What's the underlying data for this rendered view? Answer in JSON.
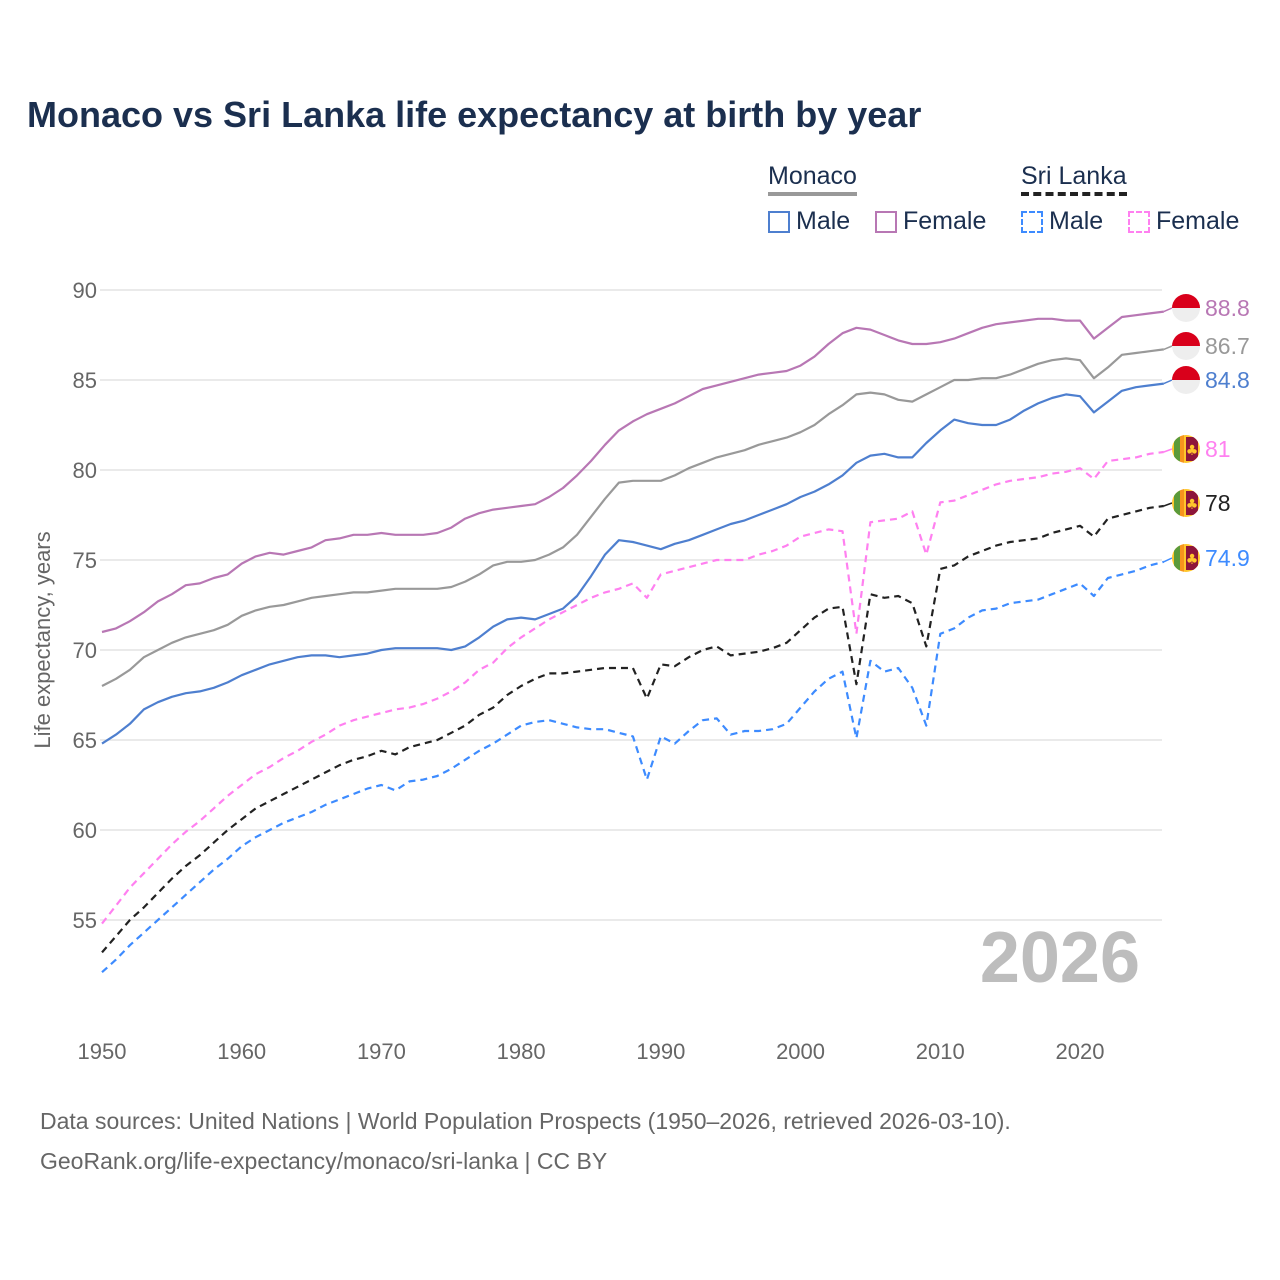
{
  "title": "Monaco vs Sri Lanka life expectancy at birth by year",
  "legend": {
    "groups": [
      {
        "name": "Monaco",
        "items": [
          "Male",
          "Female"
        ]
      },
      {
        "name": "Sri Lanka",
        "items": [
          "Male",
          "Female"
        ]
      }
    ]
  },
  "footer": {
    "line1": "Data sources: United Nations | World Population Prospects (1950–2026, retrieved 2026-03-10).",
    "line2": "GeoRank.org/life-expectancy/monaco/sri-lanka | CC BY"
  },
  "chart_data": {
    "type": "line",
    "title": "Monaco vs Sri Lanka life expectancy at birth by year",
    "xlabel": "",
    "ylabel": "Life expectancy, years",
    "xlim": [
      1950,
      2026
    ],
    "ylim": [
      50.5,
      91
    ],
    "xticks": [
      "1950",
      "1960",
      "1970",
      "1980",
      "1990",
      "2000",
      "2010",
      "2020"
    ],
    "yticks": [
      "55",
      "60",
      "65",
      "70",
      "75",
      "80",
      "85",
      "90"
    ],
    "current_year_label": "2026",
    "grid": true,
    "x_start": 1950,
    "series": [
      {
        "name": "Monaco Female",
        "color": "#b877b4",
        "dashed": false,
        "flag": "monaco",
        "end_label": "88.8",
        "values": [
          71.0,
          71.2,
          71.6,
          72.1,
          72.7,
          73.1,
          73.6,
          73.7,
          74.0,
          74.2,
          74.8,
          75.2,
          75.4,
          75.3,
          75.5,
          75.7,
          76.1,
          76.2,
          76.4,
          76.4,
          76.5,
          76.4,
          76.4,
          76.4,
          76.5,
          76.8,
          77.3,
          77.6,
          77.8,
          77.9,
          78.0,
          78.1,
          78.5,
          79.0,
          79.7,
          80.5,
          81.4,
          82.2,
          82.7,
          83.1,
          83.4,
          83.7,
          84.1,
          84.5,
          84.7,
          84.9,
          85.1,
          85.3,
          85.4,
          85.5,
          85.8,
          86.3,
          87.0,
          87.6,
          87.9,
          87.8,
          87.5,
          87.2,
          87.0,
          87.0,
          87.1,
          87.3,
          87.6,
          87.9,
          88.1,
          88.2,
          88.3,
          88.4,
          88.4,
          88.3,
          88.3,
          87.3,
          87.9,
          88.5,
          88.6,
          88.7,
          88.8
        ]
      },
      {
        "name": "Monaco",
        "color": "#999999",
        "dashed": false,
        "flag": "monaco",
        "end_label": "86.7",
        "values": [
          68.0,
          68.4,
          68.9,
          69.6,
          70.0,
          70.4,
          70.7,
          70.9,
          71.1,
          71.4,
          71.9,
          72.2,
          72.4,
          72.5,
          72.7,
          72.9,
          73.0,
          73.1,
          73.2,
          73.2,
          73.3,
          73.4,
          73.4,
          73.4,
          73.4,
          73.5,
          73.8,
          74.2,
          74.7,
          74.9,
          74.9,
          75.0,
          75.3,
          75.7,
          76.4,
          77.4,
          78.4,
          79.3,
          79.4,
          79.4,
          79.4,
          79.7,
          80.1,
          80.4,
          80.7,
          80.9,
          81.1,
          81.4,
          81.6,
          81.8,
          82.1,
          82.5,
          83.1,
          83.6,
          84.2,
          84.3,
          84.2,
          83.9,
          83.8,
          84.2,
          84.6,
          85.0,
          85.0,
          85.1,
          85.1,
          85.3,
          85.6,
          85.9,
          86.1,
          86.2,
          86.1,
          85.1,
          85.7,
          86.4,
          86.5,
          86.6,
          86.7
        ]
      },
      {
        "name": "Monaco Male",
        "color": "#4e7fcf",
        "dashed": false,
        "flag": "monaco",
        "end_label": "84.8",
        "values": [
          64.8,
          65.3,
          65.9,
          66.7,
          67.1,
          67.4,
          67.6,
          67.7,
          67.9,
          68.2,
          68.6,
          68.9,
          69.2,
          69.4,
          69.6,
          69.7,
          69.7,
          69.6,
          69.7,
          69.8,
          70.0,
          70.1,
          70.1,
          70.1,
          70.1,
          70.0,
          70.2,
          70.7,
          71.3,
          71.7,
          71.8,
          71.7,
          72.0,
          72.3,
          73.0,
          74.1,
          75.3,
          76.1,
          76.0,
          75.8,
          75.6,
          75.9,
          76.1,
          76.4,
          76.7,
          77.0,
          77.2,
          77.5,
          77.8,
          78.1,
          78.5,
          78.8,
          79.2,
          79.7,
          80.4,
          80.8,
          80.9,
          80.7,
          80.7,
          81.5,
          82.2,
          82.8,
          82.6,
          82.5,
          82.5,
          82.8,
          83.3,
          83.7,
          84.0,
          84.2,
          84.1,
          83.2,
          83.8,
          84.4,
          84.6,
          84.7,
          84.8
        ]
      },
      {
        "name": "Sri Lanka Female",
        "color": "#ff80f0",
        "dashed": true,
        "flag": "sri-lanka",
        "end_label": "81",
        "values": [
          54.8,
          55.8,
          56.8,
          57.6,
          58.4,
          59.2,
          59.9,
          60.5,
          61.2,
          61.9,
          62.5,
          63.1,
          63.5,
          64.0,
          64.4,
          64.9,
          65.3,
          65.8,
          66.1,
          66.3,
          66.5,
          66.7,
          66.8,
          67.0,
          67.3,
          67.7,
          68.2,
          68.9,
          69.3,
          70.1,
          70.7,
          71.2,
          71.7,
          72.1,
          72.5,
          72.9,
          73.2,
          73.4,
          73.7,
          72.9,
          74.2,
          74.4,
          74.6,
          74.8,
          75.0,
          75.0,
          75.0,
          75.3,
          75.5,
          75.8,
          76.3,
          76.5,
          76.7,
          76.6,
          70.9,
          77.1,
          77.2,
          77.3,
          77.7,
          75.3,
          78.2,
          78.3,
          78.6,
          78.9,
          79.2,
          79.4,
          79.5,
          79.6,
          79.8,
          79.9,
          80.1,
          79.5,
          80.5,
          80.6,
          80.7,
          80.9,
          81.0
        ]
      },
      {
        "name": "Sri Lanka",
        "color": "#222222",
        "dashed": true,
        "flag": "sri-lanka",
        "end_label": "78",
        "values": [
          53.2,
          54.1,
          55.0,
          55.7,
          56.5,
          57.3,
          58.0,
          58.6,
          59.3,
          60.0,
          60.6,
          61.2,
          61.6,
          62.0,
          62.4,
          62.8,
          63.2,
          63.6,
          63.9,
          64.1,
          64.4,
          64.2,
          64.6,
          64.8,
          65.0,
          65.4,
          65.8,
          66.4,
          66.8,
          67.5,
          68.0,
          68.4,
          68.7,
          68.7,
          68.8,
          68.9,
          69.0,
          69.0,
          69.0,
          67.3,
          69.2,
          69.1,
          69.6,
          70.0,
          70.2,
          69.7,
          69.8,
          69.9,
          70.1,
          70.4,
          71.1,
          71.8,
          72.3,
          72.4,
          68.1,
          73.1,
          72.9,
          73.0,
          72.6,
          70.2,
          74.5,
          74.7,
          75.2,
          75.5,
          75.8,
          76.0,
          76.1,
          76.2,
          76.5,
          76.7,
          76.9,
          76.3,
          77.3,
          77.5,
          77.7,
          77.9,
          78.0
        ]
      },
      {
        "name": "Sri Lanka Male",
        "color": "#3d8bff",
        "dashed": true,
        "flag": "sri-lanka",
        "end_label": "74.9",
        "values": [
          52.1,
          52.8,
          53.6,
          54.3,
          55.0,
          55.7,
          56.4,
          57.1,
          57.8,
          58.4,
          59.1,
          59.6,
          60.0,
          60.4,
          60.7,
          61.0,
          61.4,
          61.7,
          62.0,
          62.3,
          62.5,
          62.2,
          62.7,
          62.8,
          63.0,
          63.4,
          63.9,
          64.4,
          64.8,
          65.3,
          65.8,
          66.0,
          66.1,
          65.9,
          65.7,
          65.6,
          65.6,
          65.4,
          65.2,
          62.8,
          65.2,
          64.8,
          65.5,
          66.1,
          66.2,
          65.3,
          65.5,
          65.5,
          65.6,
          65.9,
          66.8,
          67.7,
          68.4,
          68.8,
          65.1,
          69.4,
          68.8,
          69.0,
          67.9,
          65.8,
          70.9,
          71.2,
          71.8,
          72.2,
          72.3,
          72.6,
          72.7,
          72.8,
          73.1,
          73.4,
          73.7,
          73.0,
          74.0,
          74.2,
          74.4,
          74.7,
          74.9
        ]
      }
    ]
  }
}
